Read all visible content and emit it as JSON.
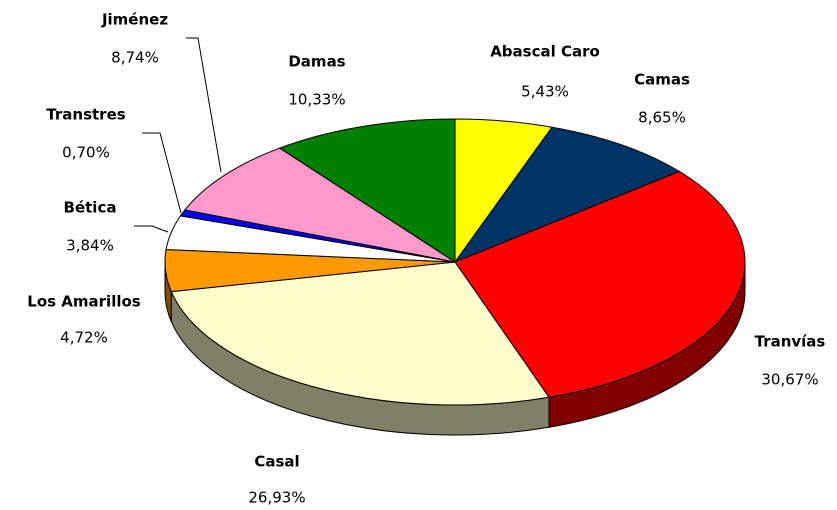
{
  "chart_data": {
    "type": "pie",
    "categories": [
      "Abascal Caro",
      "Camas",
      "Tranvías",
      "Casal",
      "Los Amarillos",
      "Bética",
      "Transtres",
      "Jiménez",
      "Damas"
    ],
    "values": [
      5.43,
      8.65,
      30.67,
      26.93,
      4.72,
      3.84,
      0.7,
      8.74,
      10.33
    ],
    "value_labels": [
      "5,43%",
      "8,65%",
      "30,67%",
      "26,93%",
      "4,72%",
      "3,84%",
      "0,70%",
      "8,74%",
      "10,33%"
    ],
    "colors": [
      "#ffff00",
      "#003366",
      "#ff0000",
      "#ffffcc",
      "#ff9900",
      "#ffffff",
      "#0000ff",
      "#ff99cc",
      "#008000"
    ]
  }
}
